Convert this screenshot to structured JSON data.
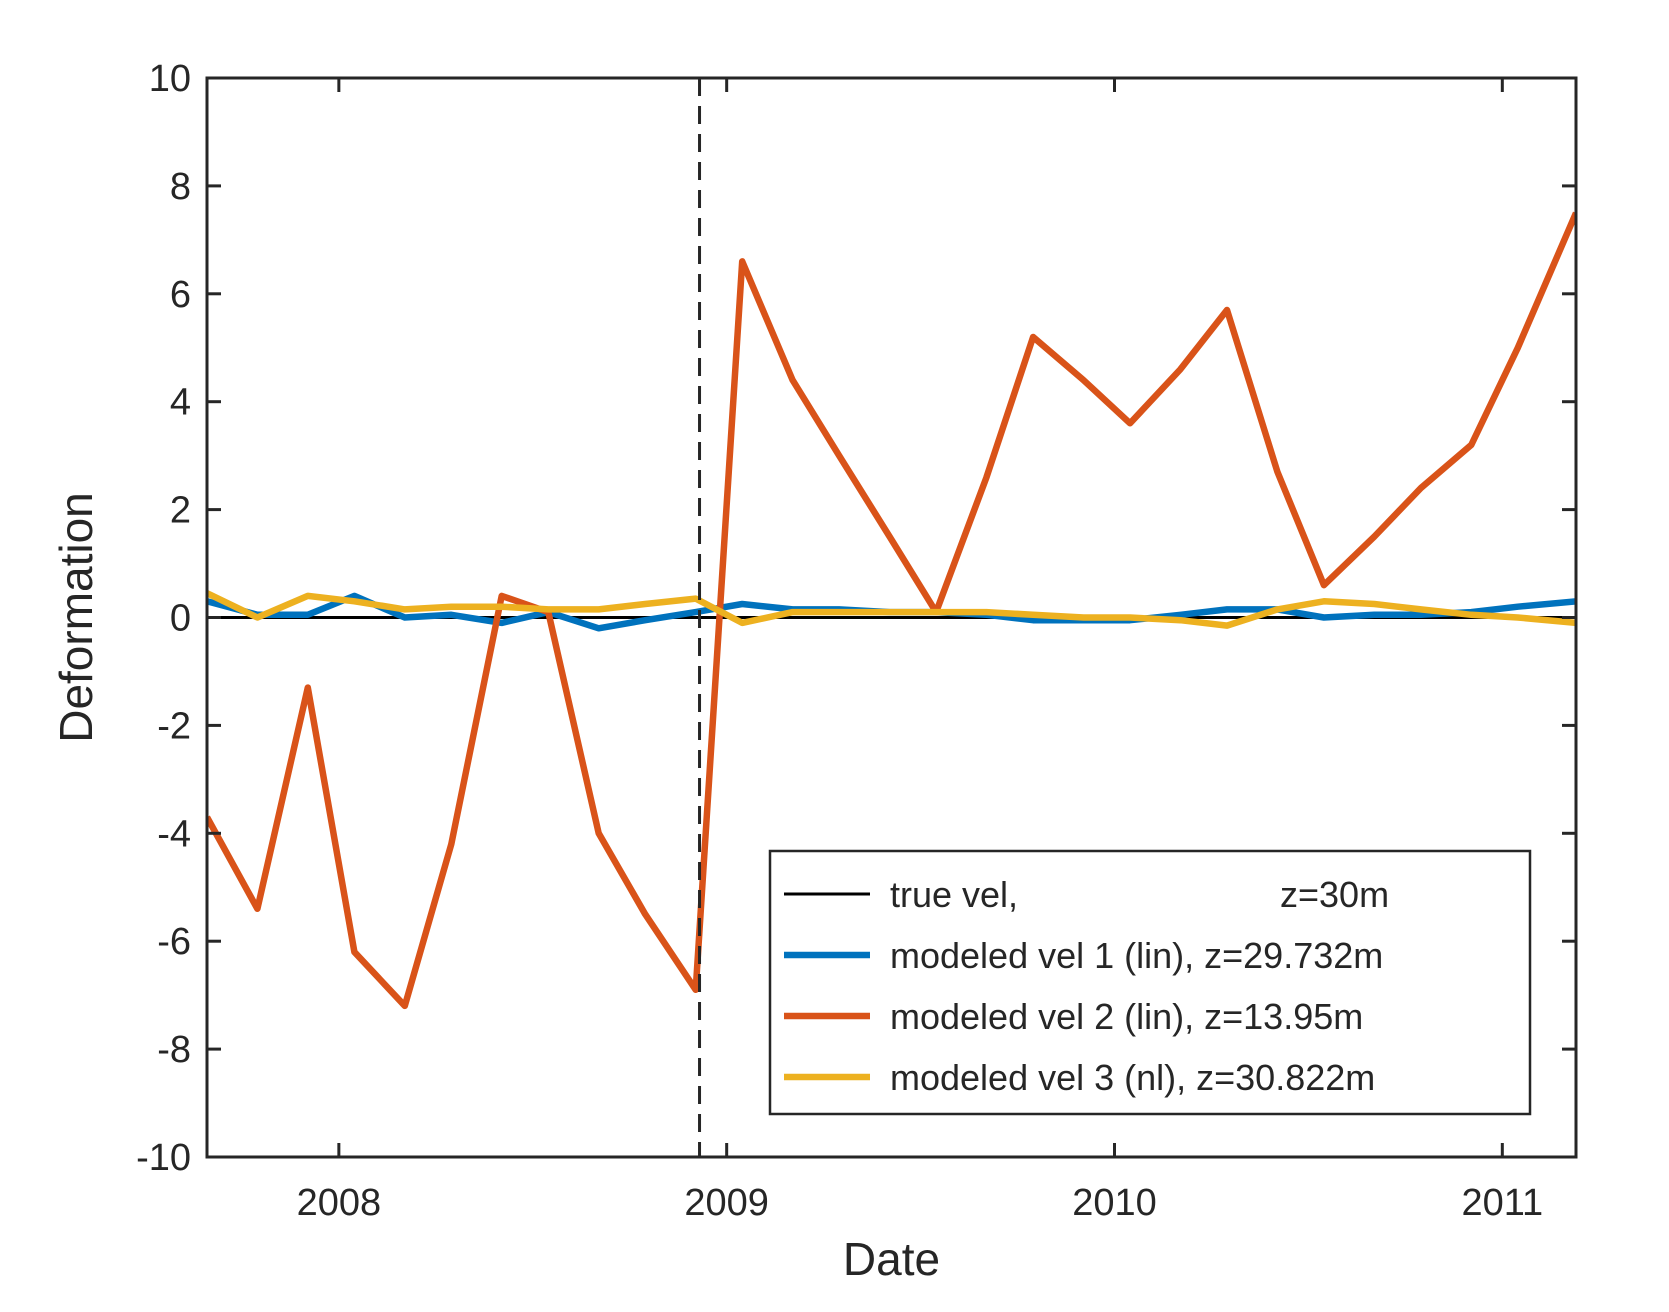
{
  "chart_data": {
    "type": "line",
    "xlabel": "Date",
    "ylabel": "Deformation",
    "xlim": [
      2007.66,
      2011.19
    ],
    "ylim": [
      -10,
      10
    ],
    "x_ticks": [
      2008,
      2009,
      2010,
      2011
    ],
    "x_tick_labels": [
      "2008",
      "2009",
      "2010",
      "2011"
    ],
    "y_ticks": [
      -10,
      -8,
      -6,
      -4,
      -2,
      0,
      2,
      4,
      6,
      8,
      10
    ],
    "y_tick_labels": [
      "-10",
      "-8",
      "-6",
      "-4",
      "-2",
      "0",
      "2",
      "4",
      "6",
      "8",
      "10"
    ],
    "vline_x": 2008.93,
    "grid": false,
    "legend_position": "bottom-right",
    "series": [
      {
        "name": "true vel,",
        "name_suffix": "z=30m",
        "color": "#000000",
        "x": [
          2007.66,
          2011.19
        ],
        "values": [
          0,
          0
        ]
      },
      {
        "name": "modeled vel 1 (lin), z=29.732m",
        "color": "#0072BD",
        "x": [
          2007.66,
          2007.79,
          2007.92,
          2008.04,
          2008.17,
          2008.29,
          2008.42,
          2008.54,
          2008.67,
          2008.79,
          2008.92,
          2009.04,
          2009.17,
          2009.29,
          2009.42,
          2009.54,
          2009.67,
          2009.79,
          2009.92,
          2010.04,
          2010.17,
          2010.29,
          2010.42,
          2010.54,
          2010.67,
          2010.79,
          2010.92,
          2011.04,
          2011.19
        ],
        "values": [
          0.3,
          0.05,
          0.05,
          0.4,
          0.0,
          0.05,
          -0.1,
          0.1,
          -0.2,
          -0.05,
          0.1,
          0.25,
          0.15,
          0.15,
          0.1,
          0.1,
          0.05,
          -0.05,
          -0.05,
          -0.05,
          0.05,
          0.15,
          0.15,
          0.0,
          0.05,
          0.05,
          0.1,
          0.2,
          0.3
        ]
      },
      {
        "name": "modeled vel 2 (lin), z=13.95m",
        "color": "#D95319",
        "x": [
          2007.66,
          2007.79,
          2007.92,
          2008.04,
          2008.17,
          2008.29,
          2008.42,
          2008.54,
          2008.67,
          2008.79,
          2008.92,
          2009.04,
          2009.17,
          2009.29,
          2009.42,
          2009.54,
          2009.67,
          2009.79,
          2009.92,
          2010.04,
          2010.17,
          2010.29,
          2010.42,
          2010.54,
          2010.67,
          2010.79,
          2010.92,
          2011.04,
          2011.19
        ],
        "values": [
          -3.7,
          -5.4,
          -1.3,
          -6.2,
          -7.2,
          -4.2,
          0.4,
          0.1,
          -4.0,
          -5.5,
          -6.9,
          6.6,
          4.4,
          3.0,
          1.5,
          0.1,
          2.6,
          5.2,
          4.4,
          3.6,
          4.6,
          5.7,
          2.7,
          0.6,
          1.5,
          2.4,
          3.2,
          5.0,
          7.5
        ]
      },
      {
        "name": "modeled vel 3 (nl), z=30.822m",
        "color": "#EDB120",
        "x": [
          2007.66,
          2007.79,
          2007.92,
          2008.04,
          2008.17,
          2008.29,
          2008.42,
          2008.54,
          2008.67,
          2008.79,
          2008.92,
          2009.04,
          2009.17,
          2009.29,
          2009.42,
          2009.54,
          2009.67,
          2009.79,
          2009.92,
          2010.04,
          2010.17,
          2010.29,
          2010.42,
          2010.54,
          2010.67,
          2010.79,
          2010.92,
          2011.04,
          2011.19
        ],
        "values": [
          0.45,
          0.0,
          0.4,
          0.3,
          0.15,
          0.2,
          0.2,
          0.15,
          0.15,
          0.25,
          0.35,
          -0.1,
          0.1,
          0.1,
          0.1,
          0.1,
          0.1,
          0.05,
          0.0,
          0.0,
          -0.05,
          -0.15,
          0.15,
          0.3,
          0.25,
          0.15,
          0.05,
          0.0,
          -0.1
        ]
      }
    ]
  }
}
